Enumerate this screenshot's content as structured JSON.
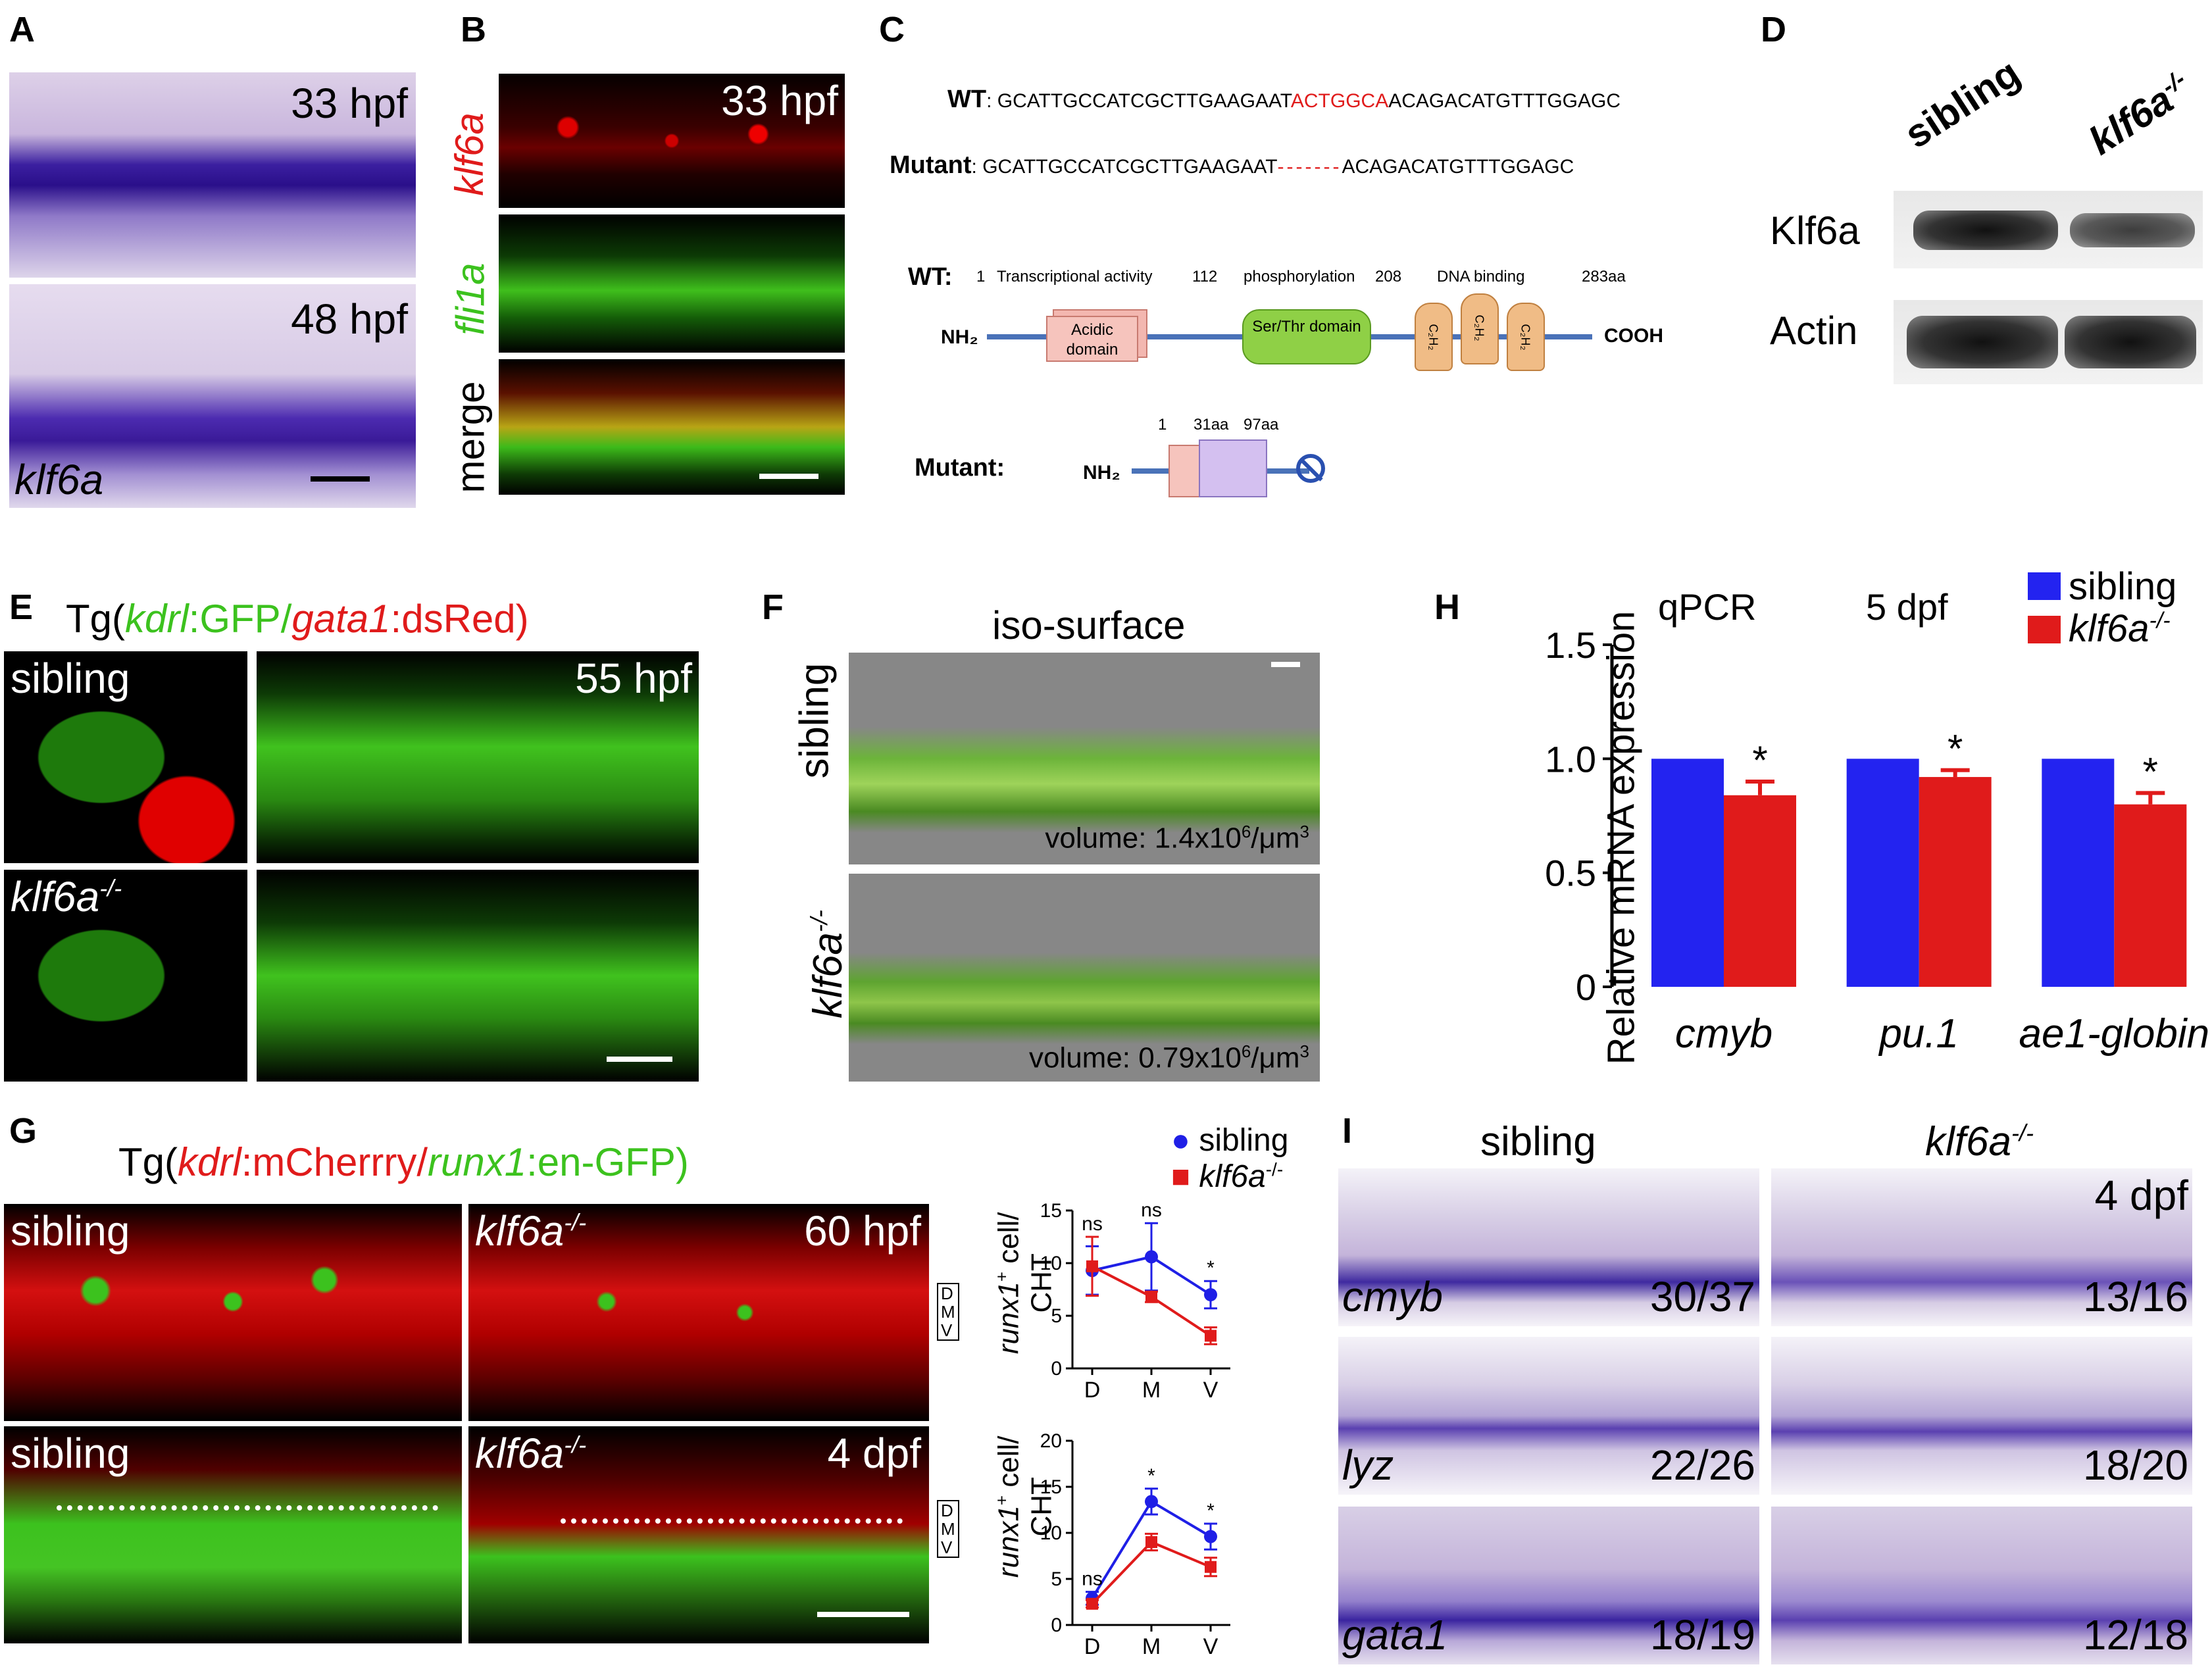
{
  "panels": {
    "A": {
      "label": "A",
      "t1": "33 hpf",
      "t2": "48 hpf",
      "gene": "klf6a"
    },
    "B": {
      "label": "B",
      "stage": "33 hpf",
      "row1": "klf6a",
      "row2": "fli1a",
      "row3": "merge"
    },
    "C": {
      "label": "C",
      "wt_prefix": "WT",
      "wt_seq_a": "GCATTGCCATCGCTTGAAGAAT",
      "wt_seq_red": "ACTGGCA",
      "wt_seq_b": "ACAGACATGTTTGGAGC",
      "mut_prefix": "Mutant",
      "mut_seq_a": "GCATTGCCATCGCTTGAAGAAT",
      "mut_dash": "-------",
      "mut_seq_b": "ACAGACATGTTTGGAGC",
      "wt2": "WT:",
      "d1": "1",
      "d_trans": "Transcriptional activity",
      "d112": "112",
      "d_phos": "phosphorylation",
      "d208": "208",
      "d_dna": "DNA binding",
      "d283": "283aa",
      "nh2": "NH₂",
      "cooh": "COOH",
      "acidic": "Acidic domain",
      "serthr": "Ser/Thr domain",
      "c2h2": "C₂H₂",
      "mutant2": "Mutant:",
      "m1": "1",
      "m31": "31aa",
      "m97": "97aa",
      "nh2b": "NH₂"
    },
    "D": {
      "label": "D",
      "lane1": "sibling",
      "lane2": "klf6a",
      "lane2_sup": "-/-",
      "row1": "Klf6a",
      "row2": "Actin"
    },
    "E": {
      "label": "E",
      "title_pre": "Tg(",
      "g1": "kdrl",
      "s1": ":GFP/",
      "g2": "gata1",
      "s2": ":dsRed)",
      "sib": "sibling",
      "mut": "klf6a",
      "mut_sup": "-/-",
      "stage": "55 hpf"
    },
    "F": {
      "label": "F",
      "title": "iso-surface",
      "sib": "sibling",
      "mut": "klf6a",
      "mut_sup": "-/-",
      "vol1": "volume: 1.4x10",
      "vol2": "volume: 0.79x10",
      "vol_sup": "6",
      "vol_unit": "/μm",
      "unit_sup": "3"
    },
    "G": {
      "label": "G",
      "title_pre": "Tg(",
      "g1": "kdrl",
      "s1": ":mCherrry/",
      "g2": "runx1",
      "s2": ":en-GFP)",
      "sib": "sibling",
      "mut": "klf6a",
      "mut_sup": "-/-",
      "stage1": "60 hpf",
      "stage2": "4 dpf",
      "D": "D",
      "M": "M",
      "V": "V",
      "ylab_a": "runx1",
      "ylab_sup": "+",
      "ylab_b": " cell/",
      "ylab_c": "CHT",
      "legend_sib": "sibling",
      "legend_mut": "klf6a",
      "legend_sup": "-/-"
    },
    "H": {
      "label": "H",
      "t1": "qPCR",
      "t2": "5 dpf",
      "leg1": "sibling",
      "leg2": "klf6a",
      "leg2_sup": "-/-",
      "ylabel": "Relative mRNA expression"
    },
    "I": {
      "label": "I",
      "sib": "sibling",
      "mut": "klf6a",
      "mut_sup": "-/-",
      "stage": "4 dpf",
      "g1": "cmyb",
      "g2": "lyz",
      "g3": "gata1",
      "c1a": "30/37",
      "c1b": "13/16",
      "c2a": "22/26",
      "c2b": "18/20",
      "c3a": "18/19",
      "c3b": "12/18"
    }
  },
  "chart_data": [
    {
      "type": "bar",
      "categories": [
        "cmyb",
        "pu.1",
        "ae1-globin"
      ],
      "series": [
        {
          "name": "sibling",
          "values": [
            1.0,
            1.0,
            1.0
          ],
          "color": "#2323f0"
        },
        {
          "name": "klf6a-/-",
          "values": [
            0.84,
            0.92,
            0.8
          ],
          "errors": [
            0.06,
            0.03,
            0.05
          ],
          "color": "#e01b1b"
        }
      ],
      "significance": [
        "*",
        "*",
        "*"
      ],
      "ylabel": "Relative mRNA expression",
      "yticks": [
        "0",
        "0.5",
        "1.0",
        "1.5"
      ],
      "ylim": [
        0,
        1.5
      ]
    },
    {
      "type": "line",
      "categories": [
        "D",
        "M",
        "V"
      ],
      "series": [
        {
          "name": "sibling",
          "values": [
            9.3,
            10.6,
            7.0
          ],
          "errors": [
            2.3,
            3.2,
            1.3
          ],
          "color": "#1f1fe6"
        },
        {
          "name": "klf6a-/-",
          "values": [
            9.7,
            6.8,
            3.1
          ],
          "errors": [
            2.8,
            0.5,
            0.8
          ],
          "color": "#e01b1b"
        }
      ],
      "significance": [
        "ns",
        "ns",
        "*"
      ],
      "yticks": [
        "0",
        "5",
        "10",
        "15"
      ],
      "ylim": [
        0,
        15
      ]
    },
    {
      "type": "line",
      "categories": [
        "D",
        "M",
        "V"
      ],
      "series": [
        {
          "name": "sibling",
          "values": [
            2.9,
            13.4,
            9.6
          ],
          "errors": [
            0.7,
            1.4,
            1.4
          ],
          "color": "#1f1fe6"
        },
        {
          "name": "klf6a-/-",
          "values": [
            2.3,
            9.0,
            6.3
          ],
          "errors": [
            0.4,
            0.9,
            1.0
          ],
          "color": "#e01b1b"
        }
      ],
      "significance": [
        "ns",
        "*",
        "*"
      ],
      "yticks": [
        "0",
        "5",
        "10",
        "15",
        "20"
      ],
      "ylim": [
        0,
        20
      ]
    }
  ]
}
